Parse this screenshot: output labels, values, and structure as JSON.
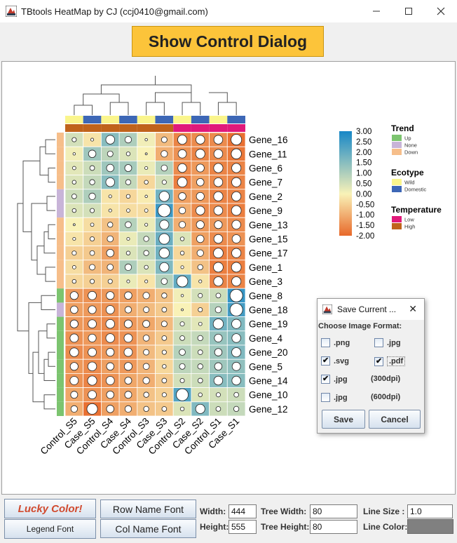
{
  "window": {
    "title": "TBtools HeatMap by CJ (ccj0410@gmail.com)"
  },
  "show_button": "Show Control Dialog",
  "chart_data": {
    "type": "heatmap",
    "rows": [
      "Gene_16",
      "Gene_11",
      "Gene_6",
      "Gene_7",
      "Gene_2",
      "Gene_9",
      "Gene_13",
      "Gene_15",
      "Gene_17",
      "Gene_1",
      "Gene_3",
      "Gene_8",
      "Gene_18",
      "Gene_19",
      "Gene_4",
      "Gene_20",
      "Gene_5",
      "Gene_14",
      "Gene_10",
      "Gene_12"
    ],
    "columns": [
      "Control_S5",
      "Case_S5",
      "Control_S4",
      "Case_S4",
      "Control_S3",
      "Case_S3",
      "Control_S2",
      "Case_S2",
      "Control_S1",
      "Case_S1"
    ],
    "values": [
      [
        0.5,
        -0.2,
        1.5,
        1.0,
        0.1,
        -0.8,
        -1.6,
        -1.5,
        -1.5,
        -1.9
      ],
      [
        0.1,
        1.2,
        0.8,
        0.4,
        0.0,
        -1.0,
        -1.4,
        -1.6,
        -1.5,
        -1.8
      ],
      [
        0.3,
        0.6,
        1.2,
        1.1,
        0.2,
        0.9,
        -1.5,
        -1.3,
        -1.6,
        -1.6
      ],
      [
        0.4,
        0.7,
        1.5,
        0.7,
        -0.4,
        0.5,
        -1.7,
        -1.2,
        -1.5,
        -1.6
      ],
      [
        0.6,
        1.0,
        -0.2,
        -0.4,
        -0.1,
        1.8,
        -1.2,
        -1.3,
        -1.6,
        -1.6
      ],
      [
        0.4,
        0.5,
        -0.2,
        -0.3,
        -0.3,
        2.5,
        -1.0,
        -1.5,
        -1.5,
        -1.7
      ],
      [
        0.0,
        -0.3,
        -0.7,
        0.9,
        0.2,
        1.6,
        -1.0,
        -1.3,
        -1.3,
        -1.5
      ],
      [
        -0.2,
        -0.5,
        -0.9,
        0.2,
        0.7,
        1.9,
        0.4,
        -1.2,
        -1.5,
        -1.4
      ],
      [
        -0.5,
        -0.6,
        -1.2,
        0.4,
        0.7,
        1.8,
        -0.4,
        -1.0,
        -1.7,
        -1.6
      ],
      [
        -0.3,
        -0.8,
        -0.9,
        1.0,
        0.4,
        1.6,
        -0.2,
        -0.7,
        -1.7,
        -1.7
      ],
      [
        -0.4,
        -0.5,
        -0.5,
        0.2,
        -0.2,
        0.9,
        2.0,
        -0.2,
        -1.6,
        -1.6
      ],
      [
        -1.3,
        -1.4,
        -1.3,
        -1.2,
        -1.0,
        -0.7,
        0.1,
        0.5,
        0.6,
        2.6
      ],
      [
        -1.2,
        -1.3,
        -1.4,
        -1.0,
        -0.8,
        -0.6,
        0.0,
        -0.5,
        0.9,
        2.4
      ],
      [
        -1.3,
        -1.4,
        -1.5,
        -1.3,
        -1.1,
        -0.8,
        0.5,
        0.3,
        1.8,
        1.6
      ],
      [
        -1.4,
        -1.3,
        -1.5,
        -1.4,
        -0.9,
        -0.6,
        0.6,
        0.7,
        1.3,
        1.5
      ],
      [
        -1.5,
        -1.4,
        -1.3,
        -1.4,
        -0.8,
        -0.5,
        0.9,
        0.6,
        1.2,
        1.6
      ],
      [
        -1.3,
        -1.5,
        -1.2,
        -1.3,
        -0.9,
        -0.4,
        0.8,
        0.7,
        1.2,
        1.4
      ],
      [
        -1.4,
        -1.6,
        -1.4,
        -1.1,
        -1.0,
        -0.6,
        0.5,
        0.6,
        1.5,
        1.5
      ],
      [
        -1.1,
        -1.4,
        -1.2,
        -1.1,
        -0.7,
        -0.5,
        2.2,
        0.4,
        0.5,
        0.6
      ],
      [
        -1.0,
        -1.9,
        -1.2,
        -1.0,
        -0.7,
        -0.6,
        0.4,
        1.6,
        0.6,
        0.7
      ]
    ],
    "colorbar": {
      "ticks": [
        "3.00",
        "2.50",
        "2.00",
        "1.50",
        "1.00",
        "0.50",
        "0.00",
        "-0.50",
        "-1.00",
        "-1.50",
        "-2.00"
      ],
      "range": [
        -2.0,
        3.0
      ]
    },
    "colors": {
      "low": "#e8692a",
      "mid": "#f9f2b7",
      "high": "#1787c7"
    },
    "col_annotations": {
      "Ecotype": [
        "Wild",
        "Domestic",
        "Wild",
        "Domestic",
        "Wild",
        "Domestic",
        "Wild",
        "Domestic",
        "Wild",
        "Domestic"
      ],
      "Temperature": [
        "High",
        "High",
        "High",
        "High",
        "High",
        "High",
        "Low",
        "Low",
        "Low",
        "Low"
      ]
    },
    "row_annotation_trend": [
      "Down",
      "Down",
      "Down",
      "Down",
      "None",
      "None",
      "Down",
      "Down",
      "Down",
      "Down",
      "Down",
      "Up",
      "None",
      "Up",
      "Up",
      "Up",
      "Up",
      "Up",
      "Up",
      "Up"
    ],
    "legends": [
      {
        "title": "Trend",
        "items": [
          {
            "label": "Up",
            "color": "#7cc46f"
          },
          {
            "label": "None",
            "color": "#c8b4d8"
          },
          {
            "label": "Down",
            "color": "#f6be8a"
          }
        ]
      },
      {
        "title": "Ecotype",
        "items": [
          {
            "label": "Wild",
            "color": "#faf58c"
          },
          {
            "label": "Domestic",
            "color": "#3d67b6"
          }
        ]
      },
      {
        "title": "Temperature",
        "items": [
          {
            "label": "Low",
            "color": "#e0197a"
          },
          {
            "label": "High",
            "color": "#c0631b"
          }
        ]
      }
    ]
  },
  "dialog": {
    "title": "Save Current ...",
    "heading": "Choose Image Format:",
    "options": [
      {
        "label": ".png",
        "checked": false
      },
      {
        "label": ".jpg",
        "checked": false
      },
      {
        "label": ".svg",
        "checked": true
      },
      {
        "label": ".pdf",
        "checked": true
      },
      {
        "label": ".jpg",
        "checked": true
      },
      {
        "label": ".jpg",
        "checked": false
      }
    ],
    "dpi_300": "(300dpi)",
    "dpi_600": "(600dpi)",
    "save": "Save",
    "cancel": "Cancel"
  },
  "controls": {
    "lucky_color": "Lucky Color!",
    "legend_font": "Legend Font",
    "row_name_font": "Row Name Font",
    "col_name_font": "Col Name Font",
    "width_label": "Width:",
    "width_value": "444",
    "height_label": "Height:",
    "height_value": "555",
    "tree_width_label": "Tree Width:",
    "tree_width_value": "80",
    "tree_height_label": "Tree Height:",
    "tree_height_value": "80",
    "line_size_label": "Line Size :",
    "line_size_value": "1.0",
    "line_color_label": "Line Color:",
    "line_color": "#808080"
  }
}
